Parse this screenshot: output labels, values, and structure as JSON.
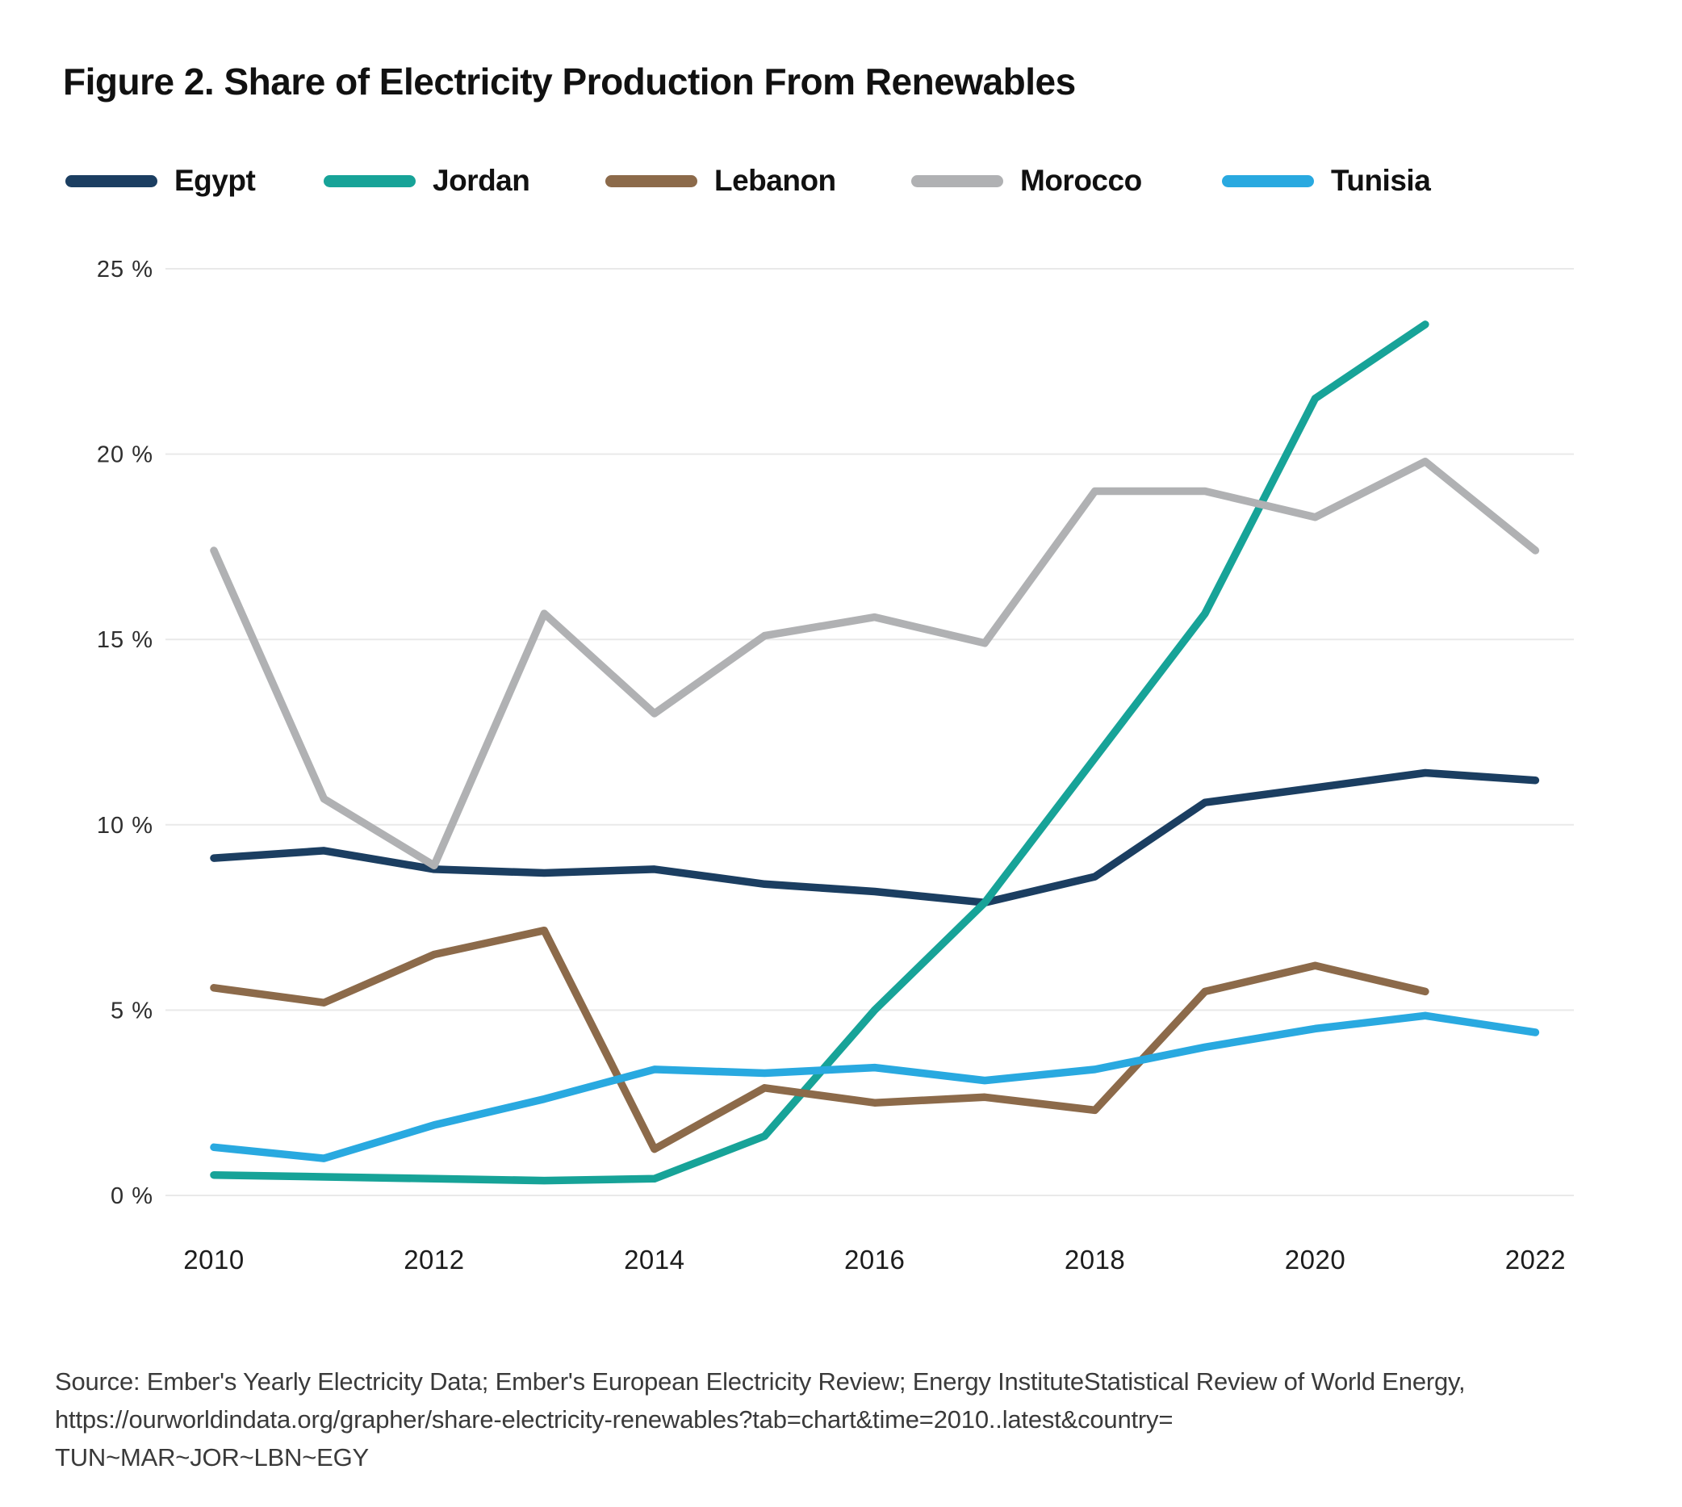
{
  "title": "Figure 2. Share of Electricity Production From Renewables",
  "chart_data": {
    "type": "line",
    "x": [
      2010,
      2011,
      2012,
      2013,
      2014,
      2015,
      2016,
      2017,
      2018,
      2019,
      2020,
      2021,
      2022
    ],
    "series": [
      {
        "name": "Egypt",
        "color": "#1b3e61",
        "values": [
          9.1,
          9.3,
          8.8,
          8.7,
          8.8,
          8.4,
          8.2,
          7.9,
          8.6,
          10.6,
          11.0,
          11.4,
          11.2
        ]
      },
      {
        "name": "Jordan",
        "color": "#17a398",
        "values": [
          0.55,
          0.5,
          0.45,
          0.4,
          0.45,
          1.6,
          5.0,
          7.9,
          11.8,
          15.7,
          21.5,
          23.5,
          null
        ]
      },
      {
        "name": "Lebanon",
        "color": "#8c6a4a",
        "values": [
          5.6,
          5.2,
          6.5,
          7.15,
          1.25,
          2.9,
          2.5,
          2.65,
          2.3,
          5.5,
          6.2,
          5.5,
          null
        ]
      },
      {
        "name": "Morocco",
        "color": "#b0b1b3",
        "values": [
          17.4,
          10.7,
          8.9,
          15.7,
          13.0,
          15.1,
          15.6,
          14.9,
          19.0,
          19.0,
          18.3,
          19.8,
          17.4
        ]
      },
      {
        "name": "Tunisia",
        "color": "#29a9e0",
        "values": [
          1.3,
          1.0,
          1.9,
          2.6,
          3.4,
          3.3,
          3.45,
          3.1,
          3.4,
          4.0,
          4.5,
          4.85,
          4.4
        ]
      }
    ],
    "title": "Figure 2. Share of Electricity Production From Renewables",
    "xlabel": "",
    "ylabel": "",
    "ylim": [
      0,
      25
    ],
    "y_ticks": [
      "25 %",
      "20 %",
      "15 %",
      "10 %",
      "5 %",
      "0 %"
    ],
    "x_ticks": [
      "2010",
      "2012",
      "2014",
      "2016",
      "2018",
      "2020",
      "2022"
    ],
    "grid": "horizontal",
    "legend_position": "top"
  },
  "legend": {
    "items": [
      {
        "label": "Egypt"
      },
      {
        "label": "Jordan"
      },
      {
        "label": "Lebanon"
      },
      {
        "label": "Morocco"
      },
      {
        "label": "Tunisia"
      }
    ]
  },
  "source": {
    "line1": "Source: Ember's Yearly Electricity Data; Ember's European Electricity Review; Energy InstituteStatistical Review of World Energy,",
    "line2": "https://ourworldindata.org/grapher/share-electricity-renewables?tab=chart&time=2010..latest&country=",
    "line3": "TUN~MAR~JOR~LBN~EGY"
  }
}
